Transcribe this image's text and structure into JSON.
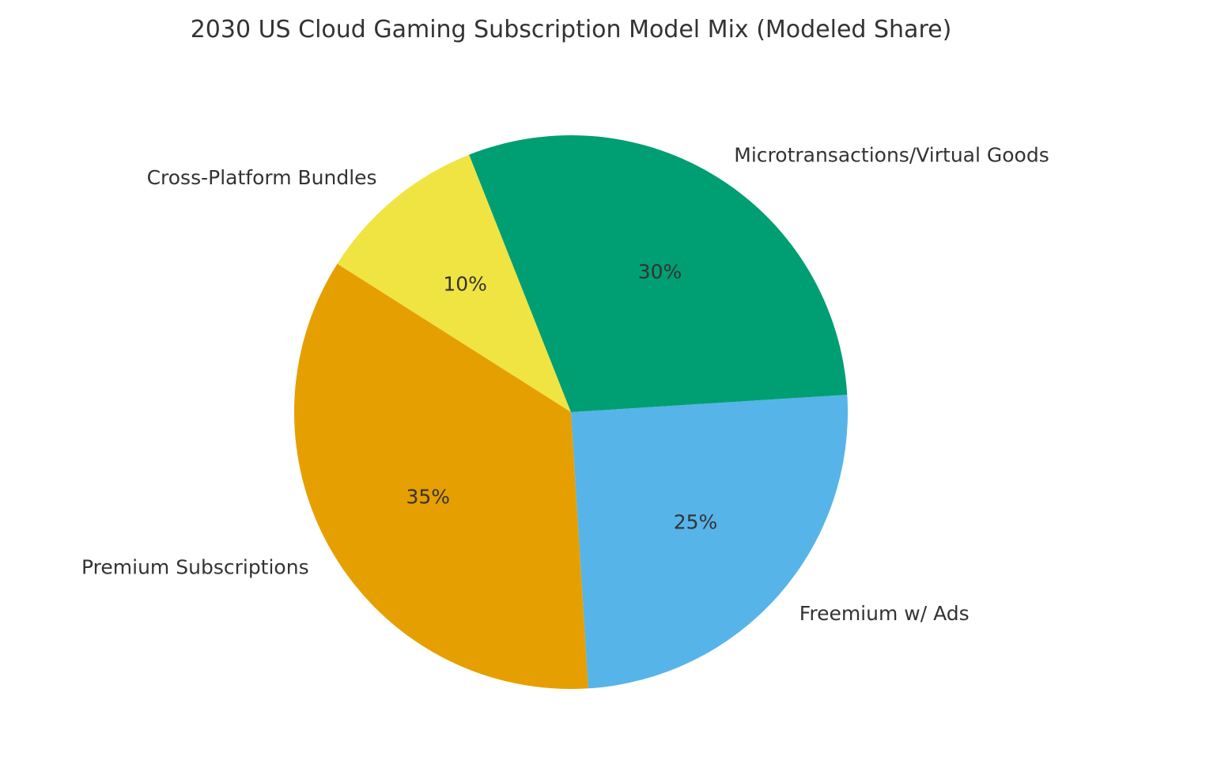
{
  "chart_data": {
    "type": "pie",
    "title": "2030 US Cloud Gaming Subscription Model Mix (Modeled Share)",
    "start_angle_deg": 111.6,
    "direction": "counterclockwise",
    "slices": [
      {
        "label": "Cross-Platform Bundles",
        "value": 10,
        "pct_label": "10%",
        "color": "#F0E442"
      },
      {
        "label": "Premium Subscriptions",
        "value": 35,
        "pct_label": "35%",
        "color": "#E69F00"
      },
      {
        "label": "Freemium w/ Ads",
        "value": 25,
        "pct_label": "25%",
        "color": "#56B4E9"
      },
      {
        "label": "Microtransactions/Virtual Goods",
        "value": 30,
        "pct_label": "30%",
        "color": "#009E73"
      }
    ]
  }
}
